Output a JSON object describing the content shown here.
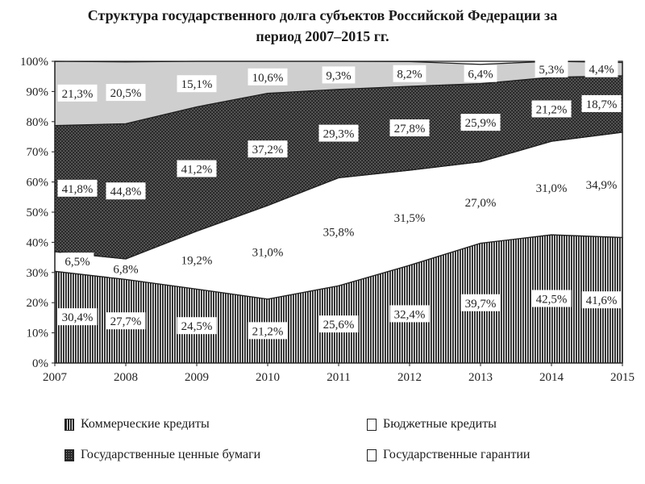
{
  "chart_data": {
    "type": "area",
    "stacked": true,
    "title_line1": "Структура государственного долга субъектов Российской Федерации за",
    "title_line2": "период 2007–2015 гг.",
    "x": [
      "2007",
      "2008",
      "2009",
      "2010",
      "2011",
      "2012",
      "2013",
      "2014",
      "2015"
    ],
    "y_ticks": [
      "0%",
      "10%",
      "20%",
      "30%",
      "40%",
      "50%",
      "60%",
      "70%",
      "80%",
      "90%",
      "100%"
    ],
    "ylim": [
      0,
      100
    ],
    "series": [
      {
        "name": "Коммерческие кредиты",
        "values": [
          30.4,
          27.7,
          24.5,
          21.2,
          25.6,
          32.4,
          39.7,
          42.5,
          41.6
        ],
        "labels": [
          "30,4%",
          "27,7%",
          "24,5%",
          "21,2%",
          "25,6%",
          "32,4%",
          "39,7%",
          "42,5%",
          "41,6%"
        ]
      },
      {
        "name": "Бюджетные кредиты",
        "values": [
          6.5,
          6.8,
          19.2,
          31.0,
          35.8,
          31.5,
          27.0,
          31.0,
          34.9
        ],
        "labels": [
          "6,5%",
          "6,8%",
          "19,2%",
          "31,0%",
          "35,8%",
          "31,5%",
          "27,0%",
          "31,0%",
          "34,9%"
        ]
      },
      {
        "name": "Государственные ценные бумаги",
        "values": [
          41.8,
          44.8,
          41.2,
          37.2,
          29.3,
          27.8,
          25.9,
          21.2,
          18.7
        ],
        "labels": [
          "41,8%",
          "44,8%",
          "41,2%",
          "37,2%",
          "29,3%",
          "27,8%",
          "25,9%",
          "21,2%",
          "18,7%"
        ]
      },
      {
        "name": "Государственные гарантии",
        "values": [
          21.3,
          20.5,
          15.1,
          10.6,
          9.3,
          8.2,
          6.4,
          5.3,
          4.4
        ],
        "labels": [
          "21,3%",
          "20,5%",
          "15,1%",
          "10,6%",
          "9,3%",
          "8,2%",
          "6,4%",
          "5,3%",
          "4,4%"
        ]
      }
    ],
    "legend_placement": "bottom",
    "grid": false
  }
}
